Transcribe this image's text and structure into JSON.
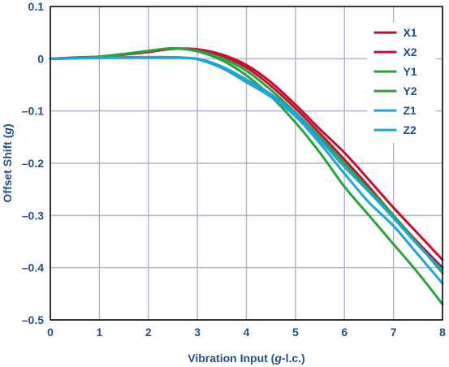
{
  "chart_data": {
    "type": "line",
    "xlabel_parts": [
      "Vibration Input (",
      "g",
      "-l.c.)"
    ],
    "ylabel_parts": [
      "Offset Shift (",
      "g",
      ")"
    ],
    "xlim": [
      0,
      8
    ],
    "ylim": [
      -0.5,
      0.1
    ],
    "x_ticks": [
      0,
      1,
      2,
      3,
      4,
      5,
      6,
      7,
      8
    ],
    "x_tick_labels": [
      "0",
      "1",
      "2",
      "3",
      "4",
      "5",
      "6",
      "7",
      "8"
    ],
    "y_ticks": [
      0.1,
      0,
      -0.1,
      -0.2,
      -0.3,
      -0.4,
      -0.5
    ],
    "y_tick_labels": [
      "0.1",
      "0",
      "–0.1",
      "–0.2",
      "–0.3",
      "–0.4",
      "–0.5"
    ],
    "grid": true,
    "legend_position": "top-right",
    "colors": {
      "axis_text": "#1f4f8c",
      "grid": "#b4b4cc",
      "frame": "#000000"
    },
    "x": [
      0,
      0.5,
      1,
      1.5,
      2,
      2.5,
      3,
      3.5,
      4,
      4.5,
      5,
      5.5,
      6,
      6.5,
      7,
      7.5,
      8
    ],
    "series": [
      {
        "name": "X1",
        "color": "#c8102e",
        "values": [
          0,
          0.002,
          0.004,
          0.008,
          0.013,
          0.019,
          0.018,
          0.008,
          -0.012,
          -0.045,
          -0.088,
          -0.135,
          -0.18,
          -0.232,
          -0.285,
          -0.335,
          -0.385
        ]
      },
      {
        "name": "X2",
        "color": "#c8102e",
        "values": [
          0,
          0.002,
          0.004,
          0.008,
          0.013,
          0.019,
          0.016,
          0.005,
          -0.017,
          -0.052,
          -0.095,
          -0.143,
          -0.193,
          -0.245,
          -0.3,
          -0.352,
          -0.4
        ]
      },
      {
        "name": "Y1",
        "color": "#2aa33a",
        "values": [
          0,
          0.001,
          0.004,
          0.009,
          0.015,
          0.02,
          0.015,
          0.001,
          -0.023,
          -0.06,
          -0.103,
          -0.15,
          -0.2,
          -0.25,
          -0.3,
          -0.355,
          -0.41
        ]
      },
      {
        "name": "Y2",
        "color": "#2aa33a",
        "values": [
          0,
          0.001,
          0.004,
          0.009,
          0.015,
          0.02,
          0.014,
          -0.003,
          -0.032,
          -0.072,
          -0.122,
          -0.18,
          -0.245,
          -0.3,
          -0.355,
          -0.41,
          -0.47
        ]
      },
      {
        "name": "Z1",
        "color": "#1aa6d6",
        "values": [
          0,
          0.001,
          0.002,
          0.002,
          0.002,
          0.002,
          0.0,
          -0.015,
          -0.04,
          -0.068,
          -0.105,
          -0.155,
          -0.207,
          -0.255,
          -0.305,
          -0.357,
          -0.405
        ]
      },
      {
        "name": "Z2",
        "color": "#1aa6d6",
        "values": [
          0,
          0.001,
          0.002,
          0.003,
          0.003,
          0.003,
          -0.001,
          -0.018,
          -0.045,
          -0.073,
          -0.11,
          -0.162,
          -0.22,
          -0.275,
          -0.32,
          -0.375,
          -0.43
        ]
      }
    ]
  }
}
